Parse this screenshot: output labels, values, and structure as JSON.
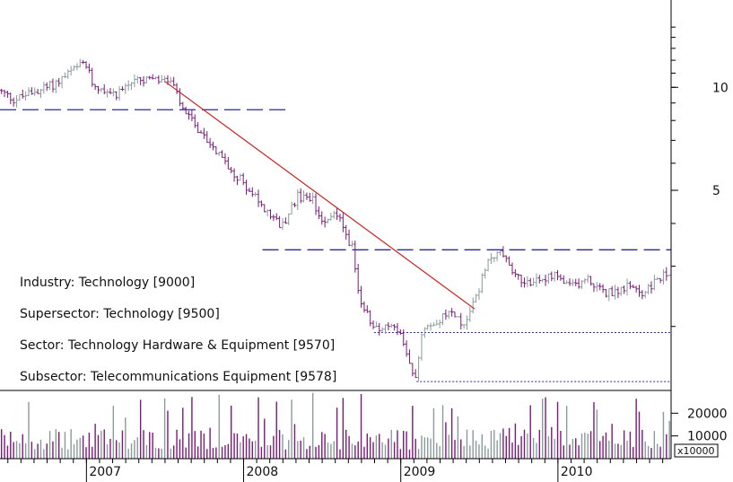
{
  "info": {
    "industry": "Industry: Technology [9000]",
    "supersector": "Supersector: Technology [9500]",
    "sector": "Sector: Technology Hardware & Equipment [9570]",
    "subsector": "Subsector: Telecommunications Equipment [9578]"
  },
  "colors": {
    "up": "#8a9a9a",
    "down": "#7a1a7a",
    "trend": "#cc2222",
    "support": "#2a2a9a",
    "axis": "#000000",
    "grid_tick": "#000000"
  },
  "chart_data": {
    "type": "candlestick",
    "scale": "log",
    "x_range": [
      2006.45,
      2010.72
    ],
    "y_range": [
      1.3,
      18.0
    ],
    "price_ticks": [
      {
        "value": 10,
        "label": "10"
      },
      {
        "value": 5,
        "label": "5"
      }
    ],
    "year_labels": [
      {
        "year": 2007,
        "label": "2007"
      },
      {
        "year": 2008,
        "label": "2008"
      },
      {
        "year": 2009,
        "label": "2009"
      },
      {
        "year": 2010,
        "label": "2010"
      }
    ],
    "volume_ticks": [
      {
        "value": 20000,
        "label": "20000"
      },
      {
        "value": 10000,
        "label": "10000"
      }
    ],
    "volume_multiplier": "x10000",
    "volume_max": 30000,
    "price_path": [
      [
        2006.45,
        9.8
      ],
      [
        2006.55,
        9.2
      ],
      [
        2006.65,
        9.6
      ],
      [
        2006.8,
        10.2
      ],
      [
        2006.9,
        11.0
      ],
      [
        2007.0,
        11.8
      ],
      [
        2007.05,
        10.2
      ],
      [
        2007.2,
        9.6
      ],
      [
        2007.3,
        10.4
      ],
      [
        2007.45,
        10.5
      ],
      [
        2007.55,
        10.4
      ],
      [
        2007.62,
        8.6
      ],
      [
        2007.7,
        7.8
      ],
      [
        2007.8,
        6.8
      ],
      [
        2007.92,
        5.8
      ],
      [
        2008.02,
        5.2
      ],
      [
        2008.12,
        4.5
      ],
      [
        2008.25,
        3.9
      ],
      [
        2008.35,
        4.8
      ],
      [
        2008.45,
        4.7
      ],
      [
        2008.5,
        4.1
      ],
      [
        2008.6,
        4.3
      ],
      [
        2008.7,
        3.4
      ],
      [
        2008.75,
        2.3
      ],
      [
        2008.85,
        2.0
      ],
      [
        2009.0,
        1.95
      ],
      [
        2009.05,
        1.6
      ],
      [
        2009.1,
        1.4
      ],
      [
        2009.15,
        2.0
      ],
      [
        2009.25,
        2.1
      ],
      [
        2009.35,
        2.2
      ],
      [
        2009.4,
        2.0
      ],
      [
        2009.48,
        2.4
      ],
      [
        2009.58,
        3.2
      ],
      [
        2009.65,
        3.3
      ],
      [
        2009.7,
        3.0
      ],
      [
        2009.8,
        2.7
      ],
      [
        2009.9,
        2.75
      ],
      [
        2010.0,
        2.8
      ],
      [
        2010.08,
        2.6
      ],
      [
        2010.2,
        2.75
      ],
      [
        2010.3,
        2.5
      ],
      [
        2010.45,
        2.6
      ],
      [
        2010.55,
        2.5
      ],
      [
        2010.65,
        2.75
      ],
      [
        2010.72,
        2.9
      ]
    ],
    "trend_line": {
      "from": [
        2007.5,
        10.4
      ],
      "to": [
        2009.47,
        2.25
      ],
      "color": "#cc2222"
    },
    "support_lines": [
      {
        "value": 8.6,
        "x_from": 2006.45,
        "x_to": 2008.3,
        "style": "dashed"
      },
      {
        "value": 3.35,
        "x_from": 2008.12,
        "x_to": 2010.72,
        "style": "dashed"
      },
      {
        "value": 1.92,
        "x_from": 2008.83,
        "x_to": 2010.72,
        "style": "dotted"
      },
      {
        "value": 1.38,
        "x_from": 2009.1,
        "x_to": 2010.72,
        "style": "dotted"
      }
    ]
  }
}
